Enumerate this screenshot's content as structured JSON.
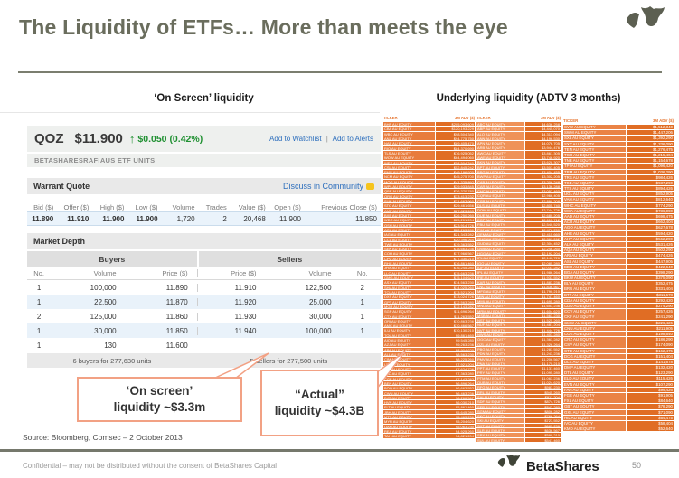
{
  "slide": {
    "title": "The Liquidity of ETFs… More than meets the eye",
    "page_number": "50",
    "confidential": "Confidential – may not be distributed without the consent of BetaShares Capital",
    "source": "Source: Bloomberg, Comsec – 2 October 2013",
    "brand": "BetaShares"
  },
  "sections": {
    "left_header": "‘On Screen’ liquidity",
    "right_header": "Underlying liquidity (ADTV 3 months)"
  },
  "quote": {
    "ticker": "QOZ",
    "price": "$11.900",
    "arrow": "↑",
    "change": "$0.050 (0.42%)",
    "watchlist_link": "Add to Watchlist",
    "alerts_link": "Add to Alerts",
    "link_separator": "|",
    "subtitle": "BETASHARESRAFIAUS ETF UNITS"
  },
  "warrant_quote": {
    "title": "Warrant Quote",
    "community_link": "Discuss in Community",
    "headers": [
      "Bid ($)",
      "Offer ($)",
      "High ($)",
      "Low ($)",
      "Volume",
      "Trades",
      "Value ($)",
      "Open ($)",
      "Previous Close ($)"
    ],
    "values": [
      "11.890",
      "11.910",
      "11.900",
      "11.900",
      "1,720",
      "2",
      "20,468",
      "11.900",
      "11.850"
    ]
  },
  "market_depth": {
    "title": "Market Depth",
    "buyers_label": "Buyers",
    "sellers_label": "Sellers",
    "buy_cols": [
      "No.",
      "Volume",
      "Price ($)"
    ],
    "sell_cols": [
      "Price ($)",
      "Volume",
      "No."
    ],
    "rows": [
      [
        "1",
        "100,000",
        "11.890",
        "11.910",
        "122,500",
        "2"
      ],
      [
        "1",
        "22,500",
        "11.870",
        "11.920",
        "25,000",
        "1"
      ],
      [
        "2",
        "125,000",
        "11.860",
        "11.930",
        "30,000",
        "1"
      ],
      [
        "1",
        "30,000",
        "11.850",
        "11.940",
        "100,000",
        "1"
      ],
      [
        "1",
        "130",
        "11.600",
        "",
        "",
        ""
      ]
    ],
    "buyers_summary": "6 buyers for 277,630 units",
    "sellers_summary": "5 sellers for 277,500 units"
  },
  "callouts": [
    {
      "line1": "‘On screen’",
      "line2": "liquidity ~$3.3m"
    },
    {
      "line1": "“Actual”",
      "line2": "liquidity ~$4.3B"
    }
  ],
  "colors": {
    "accent_orange": "#e5732d",
    "green": "#1f9031",
    "link_blue": "#2e6fbd",
    "title_gray": "#6a6d5d",
    "callout_border": "#f2a184"
  },
  "adtv_tables": [
    {
      "header_left": "TICKER",
      "header_right": "3M ADV ($)",
      "rows": [
        [
          "BHP AU EQUITY",
          "$205,093,609"
        ],
        [
          "CBA AU EQUITY",
          "$120,193,229"
        ],
        [
          "WBC AU EQUITY",
          "$98,504,340"
        ],
        [
          "ANZ AU EQUITY",
          "$94,775,750"
        ],
        [
          "NAB AU EQUITY",
          "$89,405,470"
        ],
        [
          "RIO AU EQUITY",
          "$84,370,690"
        ],
        [
          "TLS AU EQUITY",
          "$76,925,052"
        ],
        [
          "WOW AU EQUITY",
          "$64,494,060"
        ],
        [
          "WES AU EQUITY",
          "$58,504,340"
        ],
        [
          "CSL AU EQUITY",
          "$52,845,242"
        ],
        [
          "FMG AU EQUITY",
          "$49,196,920"
        ],
        [
          "NCM AU EQUITY",
          "$45,275,700"
        ],
        [
          "MQG AU EQUITY",
          "$41,325,892"
        ],
        [
          "WPL AU EQUITY",
          "$39,933,845"
        ],
        [
          "QBE AU EQUITY",
          "$36,370,780"
        ],
        [
          "ORG AU EQUITY",
          "$33,413,232"
        ],
        [
          "SUN AU EQUITY",
          "$31,663,960"
        ],
        [
          "STO AU EQUITY",
          "$29,461,656"
        ],
        [
          "AMP AU EQUITY",
          "$27,823,283"
        ],
        [
          "BXB AU EQUITY",
          "$26,250,260"
        ],
        [
          "WDC AU EQUITY",
          "$25,201,204"
        ],
        [
          "OSH AU EQUITY",
          "$23,914,726"
        ],
        [
          "AGL AU EQUITY",
          "$22,263,280"
        ],
        [
          "IAG AU EQUITY",
          "$21,343,282"
        ],
        [
          "CCL AU EQUITY",
          "$20,396,264"
        ],
        [
          "TWE AU EQUITY",
          "$19,363,552"
        ],
        [
          "SEK AU EQUITY",
          "$18,663,236"
        ],
        [
          "COH AU EQUITY",
          "$17,966,567"
        ],
        [
          "CPU AU EQUITY",
          "$17,330,210"
        ],
        [
          "RHC AU EQUITY",
          "$16,861,460"
        ],
        [
          "JHX AU EQUITY",
          "$16,245,280"
        ],
        [
          "LLC AU EQUITY",
          "$15,663,236"
        ],
        [
          "GMG AU EQUITY",
          "$15,104,620"
        ],
        [
          "ASX AU EQUITY",
          "$14,563,230"
        ],
        [
          "SHL AU EQUITY",
          "$14,025,260"
        ],
        [
          "TCL AU EQUITY",
          "$13,521,204"
        ],
        [
          "DXS AU EQUITY",
          "$13,024,726"
        ],
        [
          "GPT AU EQUITY",
          "$12,563,280"
        ],
        [
          "MGR AU EQUITY",
          "$12,143,282"
        ],
        [
          "SGP AU EQUITY",
          "$11,696,264"
        ],
        [
          "CTX AU EQUITY",
          "$11,263,552"
        ],
        [
          "ORI AU EQUITY",
          "$10,863,236"
        ],
        [
          "AMC AU EQUITY",
          "$10,466,567"
        ],
        [
          "ILU AU EQUITY",
          "$10,130,210"
        ],
        [
          "TOL AU EQUITY",
          "$9,861,460"
        ],
        [
          "AIO AU EQUITY",
          "$9,545,280"
        ],
        [
          "AZJ AU EQUITY",
          "$9,263,236"
        ],
        [
          "APA AU EQUITY",
          "$8,904,620"
        ],
        [
          "ALL AU EQUITY",
          "$8,563,230"
        ],
        [
          "CIM AU EQUITY",
          "$8,225,260"
        ],
        [
          "LEI AU EQUITY",
          "$7,921,204"
        ],
        [
          "BSL AU EQUITY",
          "$7,624,726"
        ],
        [
          "BLD AU EQUITY",
          "$7,363,280"
        ],
        [
          "CGF AU EQUITY",
          "$7,143,282"
        ],
        [
          "BEN AU EQUITY",
          "$6,896,264"
        ],
        [
          "BOQ AU EQUITY",
          "$6,663,552"
        ],
        [
          "CWN AU EQUITY",
          "$6,463,236"
        ],
        [
          "DJS AU EQUITY",
          "$6,266,567"
        ],
        [
          "HVN AU EQUITY",
          "$6,030,210"
        ],
        [
          "FLT AU EQUITY",
          "$5,861,460"
        ],
        [
          "JBH AU EQUITY",
          "$5,645,280"
        ],
        [
          "MTS AU EQUITY",
          "$5,463,236"
        ],
        [
          "MYR AU EQUITY",
          "$5,204,620"
        ],
        [
          "QAN AU EQUITY",
          "$5,063,230"
        ],
        [
          "REA AU EQUITY",
          "$4,925,260"
        ],
        [
          "TAH AU EQUITY",
          "$4,821,204"
        ]
      ]
    },
    {
      "header_left": "TICKER",
      "header_right": "3M ADV ($)",
      "rows": [
        [
          "ABC AU EQUITY",
          "$4,636,258"
        ],
        [
          "ABP AU EQUITY",
          "$4,445,070"
        ],
        [
          "ALQ AU EQUITY",
          "$4,313,094"
        ],
        [
          "ANN AU EQUITY",
          "$4,196,530"
        ],
        [
          "APN AU EQUITY",
          "$4,076,705"
        ],
        [
          "ARB AU EQUITY",
          "$3,944,476"
        ],
        [
          "AWC AU EQUITY",
          "$3,861,305"
        ],
        [
          "AWE AU EQUITY",
          "$3,746,920"
        ],
        [
          "BKN AU EQUITY",
          "$3,628,307"
        ],
        [
          "BPT AU EQUITY",
          "$3,503,405"
        ],
        [
          "BRG AU EQUITY",
          "$3,404,455"
        ],
        [
          "BWP AU EQUITY",
          "$3,302,205"
        ],
        [
          "CAB AU EQUITY",
          "$3,206,248"
        ],
        [
          "CAR AU EQUITY",
          "$3,136,288"
        ],
        [
          "CHC AU EQUITY",
          "$3,052,460"
        ],
        [
          "CQR AU EQUITY",
          "$2,966,405"
        ],
        [
          "CSR AU EQUITY",
          "$2,890,208"
        ],
        [
          "DLS AU EQUITY",
          "$2,805,740"
        ],
        [
          "DOW AU EQUITY",
          "$2,744,726"
        ],
        [
          "DUE AU EQUITY",
          "$2,680,205"
        ],
        [
          "EGP AU EQUITY",
          "$2,615,712"
        ],
        [
          "FBU AU EQUITY",
          "$2,540,520"
        ],
        [
          "FXJ AU EQUITY",
          "$2,478,250"
        ],
        [
          "GEM AU EQUITY",
          "$2,415,660"
        ],
        [
          "GNC AU EQUITY",
          "$2,369,262"
        ],
        [
          "GUD AU EQUITY",
          "$2,304,452"
        ],
        [
          "GWA AU EQUITY",
          "$2,246,260"
        ],
        [
          "HGG AU EQUITY",
          "$2,192,204"
        ],
        [
          "IFL AU EQUITY",
          "$2,140,726"
        ],
        [
          "IGO AU EQUITY",
          "$2,085,280"
        ],
        [
          "IOF AU EQUITY",
          "$2,033,282"
        ],
        [
          "IPL AU EQUITY",
          "$1,986,264"
        ],
        [
          "IRE AU EQUITY",
          "$1,933,552"
        ],
        [
          "KAR AU EQUITY",
          "$1,883,236"
        ],
        [
          "LNC AU EQUITY",
          "$1,836,567"
        ],
        [
          "MFG AU EQUITY",
          "$1,790,210"
        ],
        [
          "MIN AU EQUITY",
          "$1,741,460"
        ],
        [
          "MML AU EQUITY",
          "$1,695,280"
        ],
        [
          "MND AU EQUITY",
          "$1,653,236"
        ],
        [
          "MRM AU EQUITY",
          "$1,604,620"
        ],
        [
          "MSB AU EQUITY",
          "$1,563,230"
        ],
        [
          "NST AU EQUITY",
          "$1,525,260"
        ],
        [
          "NUF AU EQUITY",
          "$1,481,204"
        ],
        [
          "NVT AU EQUITY",
          "$1,444,726"
        ],
        [
          "NWS AU EQUITY",
          "$1,403,280"
        ],
        [
          "OGC AU EQUITY",
          "$1,363,282"
        ],
        [
          "OZL AU EQUITY",
          "$1,326,264"
        ],
        [
          "PBG AU EQUITY",
          "$1,283,552"
        ],
        [
          "PDN AU EQUITY",
          "$1,243,236"
        ],
        [
          "PMV AU EQUITY",
          "$1,206,567"
        ],
        [
          "PNA AU EQUITY",
          "$1,170,210"
        ],
        [
          "PPT AU EQUITY",
          "$1,131,460"
        ],
        [
          "PRY AU EQUITY",
          "$1,095,280"
        ],
        [
          "PTM AU EQUITY",
          "$1,063,236"
        ],
        [
          "QUB AU EQUITY",
          "$1,024,620"
        ],
        [
          "RFG AU EQUITY",
          "$983,230"
        ],
        [
          "RRL AU EQUITY",
          "$945,260"
        ],
        [
          "SAI AU EQUITY",
          "$911,204"
        ],
        [
          "SDF AU EQUITY",
          "$874,726"
        ],
        [
          "SFR AU EQUITY",
          "$843,280"
        ],
        [
          "SGM AU EQUITY",
          "$806,282"
        ],
        [
          "SKC AU EQUITY",
          "$766,264"
        ],
        [
          "SKI AU EQUITY",
          "$723,552"
        ],
        [
          "SKT AU EQUITY",
          "$683,236"
        ],
        [
          "SLR AU EQUITY",
          "$636,567"
        ],
        [
          "SRX AU EQUITY",
          "$590,210"
        ],
        [
          "SUL AU EQUITY",
          "$541,460"
        ]
      ]
    },
    {
      "header_left": "TICKER",
      "header_right": "3M ADV ($)",
      "rows": [
        [
          "SVW AU EQUITY",
          "$1,512,340"
        ],
        [
          "SWM AU EQUITY",
          "$1,447,206"
        ],
        [
          "SXL AU EQUITY",
          "$1,392,290"
        ],
        [
          "SXY AU EQUITY",
          "$1,336,090"
        ],
        [
          "TEN AU EQUITY",
          "$1,276,475"
        ],
        [
          "TGR AU EQUITY",
          "$1,215,404"
        ],
        [
          "TNE AU EQUITY",
          "$1,154,678"
        ],
        [
          "TPI AU EQUITY",
          "$1,096,420"
        ],
        [
          "TPM AU EQUITY",
          "$1,036,290"
        ],
        [
          "TRS AU EQUITY",
          "$984,426"
        ],
        [
          "TSE AU EQUITY",
          "$937,290"
        ],
        [
          "TTS AU EQUITY",
          "$894,426"
        ],
        [
          "UGL AU EQUITY",
          "$852,905"
        ],
        [
          "VAH AU EQUITY",
          "$812,640"
        ],
        [
          "WHC AU EQUITY",
          "$774,290"
        ],
        [
          "WSA AU EQUITY",
          "$736,090"
        ],
        [
          "AAD AU EQUITY",
          "$698,475"
        ],
        [
          "ACR AU EQUITY",
          "$662,404"
        ],
        [
          "AGO AU EQUITY",
          "$627,678"
        ],
        [
          "AHE AU EQUITY",
          "$594,420"
        ],
        [
          "AHY AU EQUITY",
          "$562,290"
        ],
        [
          "ALK AU EQUITY",
          "$531,426"
        ],
        [
          "AQA AU EQUITY",
          "$502,290"
        ],
        [
          "ARI AU EQUITY",
          "$474,426"
        ],
        [
          "ASL AU EQUITY",
          "$447,905"
        ],
        [
          "BDR AU EQUITY",
          "$422,640"
        ],
        [
          "BGA AU EQUITY",
          "$398,290"
        ],
        [
          "BKW AU EQUITY",
          "$375,090"
        ],
        [
          "BLY AU EQUITY",
          "$352,475"
        ],
        [
          "BRU AU EQUITY",
          "$331,404"
        ],
        [
          "BTT AU EQUITY",
          "$311,678"
        ],
        [
          "CDA AU EQUITY",
          "$292,420"
        ],
        [
          "CDD AU EQUITY",
          "$274,290"
        ],
        [
          "CCV AU EQUITY",
          "$257,426"
        ],
        [
          "CKF AU EQUITY",
          "$241,290"
        ],
        [
          "CMW AU EQUITY",
          "$226,426"
        ],
        [
          "CNU AU EQUITY",
          "$211,905"
        ],
        [
          "COE AU EQUITY",
          "$198,640"
        ],
        [
          "CRZ AU EQUITY",
          "$186,290"
        ],
        [
          "CSV AU EQUITY",
          "$174,090"
        ],
        [
          "CTD AU EQUITY",
          "$162,475"
        ],
        [
          "DCG AU EQUITY",
          "$151,404"
        ],
        [
          "DLX AU EQUITY",
          "$141,678"
        ],
        [
          "DMP AU EQUITY",
          "$132,420"
        ],
        [
          "DTL AU EQUITY",
          "$123,290"
        ],
        [
          "ELD AU EQUITY",
          "$115,426"
        ],
        [
          "EVN AU EQUITY",
          "$107,290"
        ],
        [
          "FAN AU EQUITY",
          "$99,426"
        ],
        [
          "FGE AU EQUITY",
          "$91,905"
        ],
        [
          "FXL AU EQUITY",
          "$84,640"
        ],
        [
          "GBT AU EQUITY",
          "$78,290"
        ],
        [
          "GXL AU EQUITY",
          "$71,090"
        ],
        [
          "HIL AU EQUITY",
          "$64,475"
        ],
        [
          "IVC AU EQUITY",
          "$58,404"
        ],
        [
          "KMD AU EQUITY",
          "$52,640"
        ]
      ]
    }
  ]
}
